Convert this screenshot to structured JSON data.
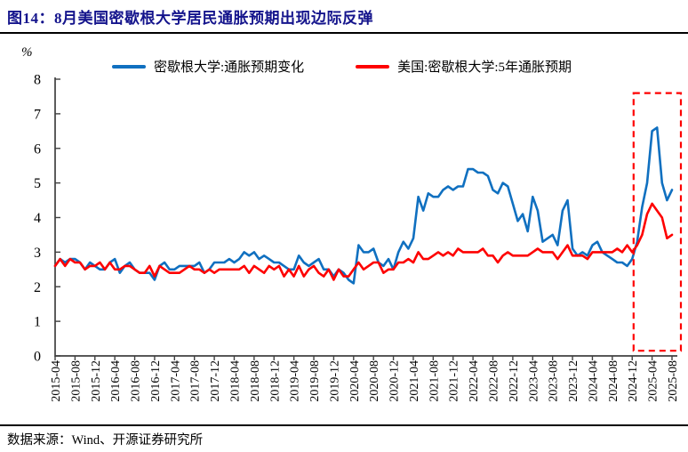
{
  "title": "图14：8月美国密歇根大学居民通胀预期出现边际反弹",
  "source": "数据来源：Wind、开源证券研究所",
  "colors": {
    "title": "#14148C",
    "axis": "#404040",
    "series1": "#1070C0",
    "series2": "#FE0000",
    "highlight": "#FE0000"
  },
  "chart_data": {
    "type": "line",
    "title": "图14：8月美国密歇根大学居民通胀预期出现边际反弹",
    "xlabel": "",
    "ylabel": "%",
    "ylim": [
      0,
      8
    ],
    "y_ticks": [
      0,
      1,
      2,
      3,
      4,
      5,
      6,
      7,
      8
    ],
    "grid": false,
    "legend_position": "top",
    "x_frequency": "monthly",
    "x_start": "2015-04",
    "x_end": "2025-08",
    "x_tick_every": 4,
    "x_tick_labels": [
      "2015-04",
      "2015-08",
      "2015-12",
      "2016-04",
      "2016-08",
      "2016-12",
      "2017-04",
      "2017-08",
      "2017-12",
      "2018-04",
      "2018-08",
      "2018-12",
      "2019-04",
      "2019-08",
      "2019-12",
      "2020-04",
      "2020-08",
      "2020-12",
      "2021-04",
      "2021-08",
      "2021-12",
      "2022-04",
      "2022-08",
      "2022-12",
      "2023-04",
      "2023-08",
      "2023-12",
      "2024-04",
      "2024-08",
      "2024-12",
      "2025-04",
      "2025-08"
    ],
    "series": [
      {
        "name": "密歇根大学:通胀预期变化",
        "color": "#1070C0",
        "values": [
          2.6,
          2.8,
          2.7,
          2.8,
          2.8,
          2.7,
          2.5,
          2.7,
          2.6,
          2.5,
          2.5,
          2.7,
          2.8,
          2.4,
          2.6,
          2.7,
          2.5,
          2.4,
          2.4,
          2.4,
          2.2,
          2.6,
          2.7,
          2.5,
          2.5,
          2.6,
          2.6,
          2.6,
          2.6,
          2.7,
          2.4,
          2.5,
          2.7,
          2.7,
          2.7,
          2.8,
          2.7,
          2.8,
          3.0,
          2.9,
          3.0,
          2.8,
          2.9,
          2.8,
          2.7,
          2.7,
          2.6,
          2.5,
          2.5,
          2.9,
          2.7,
          2.6,
          2.7,
          2.8,
          2.5,
          2.5,
          2.3,
          2.5,
          2.4,
          2.2,
          2.1,
          3.2,
          3.0,
          3.0,
          3.1,
          2.7,
          2.6,
          2.8,
          2.5,
          3.0,
          3.3,
          3.1,
          3.4,
          4.6,
          4.2,
          4.7,
          4.6,
          4.6,
          4.8,
          4.9,
          4.8,
          4.9,
          4.9,
          5.4,
          5.4,
          5.3,
          5.3,
          5.2,
          4.8,
          4.7,
          5.0,
          4.9,
          4.4,
          3.9,
          4.1,
          3.6,
          4.6,
          4.2,
          3.3,
          3.4,
          3.5,
          3.2,
          4.2,
          4.5,
          3.1,
          2.9,
          3.0,
          2.9,
          3.2,
          3.3,
          3.0,
          2.9,
          2.8,
          2.7,
          2.7,
          2.6,
          2.8,
          3.3,
          4.3,
          5.0,
          6.5,
          6.6,
          5.0,
          4.5,
          4.8
        ]
      },
      {
        "name": "美国:密歇根大学:5年通胀预期",
        "color": "#FE0000",
        "values": [
          2.6,
          2.8,
          2.6,
          2.8,
          2.7,
          2.7,
          2.5,
          2.6,
          2.6,
          2.7,
          2.5,
          2.7,
          2.5,
          2.5,
          2.6,
          2.6,
          2.5,
          2.4,
          2.4,
          2.6,
          2.3,
          2.6,
          2.5,
          2.4,
          2.4,
          2.4,
          2.5,
          2.6,
          2.5,
          2.5,
          2.4,
          2.5,
          2.4,
          2.5,
          2.5,
          2.5,
          2.5,
          2.5,
          2.6,
          2.4,
          2.6,
          2.5,
          2.4,
          2.6,
          2.5,
          2.6,
          2.3,
          2.5,
          2.3,
          2.6,
          2.3,
          2.5,
          2.6,
          2.4,
          2.3,
          2.5,
          2.2,
          2.5,
          2.3,
          2.3,
          2.5,
          2.7,
          2.5,
          2.6,
          2.7,
          2.7,
          2.4,
          2.5,
          2.5,
          2.7,
          2.7,
          2.8,
          2.7,
          3.0,
          2.8,
          2.8,
          2.9,
          3.0,
          2.9,
          3.0,
          2.9,
          3.1,
          3.0,
          3.0,
          3.0,
          3.0,
          3.1,
          2.9,
          2.9,
          2.7,
          2.9,
          3.0,
          2.9,
          2.9,
          2.9,
          2.9,
          3.0,
          3.1,
          3.0,
          3.0,
          3.0,
          2.8,
          3.0,
          3.2,
          2.9,
          2.9,
          2.9,
          2.8,
          3.0,
          3.0,
          3.0,
          3.0,
          3.0,
          3.1,
          3.0,
          3.2,
          3.0,
          3.2,
          3.5,
          4.1,
          4.4,
          4.2,
          4.0,
          3.4,
          3.5
        ]
      }
    ],
    "highlight_box": {
      "x_from": "2025-01",
      "x_to": "2025-08",
      "y_from": 0.15,
      "y_to": 7.6,
      "style": "red-dashed"
    }
  }
}
